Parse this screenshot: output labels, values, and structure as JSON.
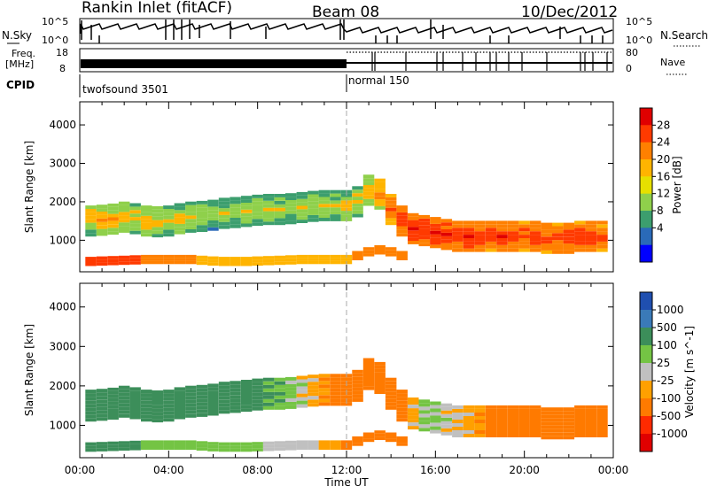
{
  "header": {
    "station": "Rankin Inlet (fitACF)",
    "beam": "Beam 08",
    "date": "10/Dec/2012"
  },
  "top_panels": {
    "nsky_label": "N.Sky",
    "nsearch_label": "N.Search",
    "nsky_ticks": [
      "10^5",
      "10^0"
    ],
    "freq_label_1": "Freq.",
    "freq_label_2": "[MHz]",
    "freq_ticks": [
      "18",
      "8"
    ],
    "nave_label": "Nave",
    "nave_ticks": [
      "80",
      "0"
    ],
    "cpid_label": "CPID",
    "cpid_1": "twofsound 3501",
    "cpid_2": "normal 150"
  },
  "chart_data": [
    {
      "type": "heatmap",
      "name": "power",
      "ylabel": "Slant Range [km]",
      "colorbar_label": "Power [dB]",
      "colorbar_ticks": [
        "28",
        "24",
        "20",
        "16",
        "12",
        "8",
        "4"
      ],
      "colorbar_colors": [
        "#e00000",
        "#ff3a00",
        "#ff8000",
        "#ffb400",
        "#e6e000",
        "#8fd04b",
        "#3c9e6e",
        "#2a6ab8",
        "#0000ff"
      ],
      "x_ticks": [
        "00:00",
        "04:00",
        "08:00",
        "12:00",
        "16:00",
        "20:00",
        "00:00"
      ],
      "y_ticks": [
        "1000",
        "2000",
        "3000",
        "4000"
      ],
      "xlim_hours": [
        0,
        24
      ],
      "ylim_km": [
        180,
        4600
      ],
      "x_hours": [
        0.5,
        1.0,
        1.5,
        2.0,
        2.5,
        3.0,
        3.5,
        4.0,
        4.5,
        5.0,
        5.5,
        6.0,
        6.5,
        7.0,
        7.5,
        8.0,
        8.5,
        9.0,
        9.5,
        10.0,
        10.5,
        11.0,
        11.5,
        12.0,
        12.5,
        13.0,
        13.5,
        14.0,
        14.5,
        15.0,
        15.5,
        16.0,
        16.5,
        17.0,
        17.5,
        18.0,
        18.5,
        19.0,
        19.5,
        20.0,
        20.5,
        21.0,
        21.5,
        22.0,
        22.5,
        23.0,
        23.5
      ],
      "band_center_km": [
        1500,
        1520,
        1550,
        1600,
        1560,
        1500,
        1480,
        1500,
        1560,
        1600,
        1620,
        1650,
        1700,
        1720,
        1750,
        1780,
        1800,
        1800,
        1820,
        1850,
        1880,
        1900,
        1900,
        1900,
        2000,
        2300,
        2200,
        1800,
        1500,
        1300,
        1250,
        1200,
        1150,
        1100,
        1100,
        1100,
        1100,
        1100,
        1100,
        1100,
        1100,
        1050,
        1050,
        1050,
        1100,
        1100,
        1100
      ],
      "band_power_db": [
        20,
        20,
        19,
        18,
        18,
        18,
        18,
        17,
        17,
        17,
        16,
        15,
        15,
        15,
        16,
        16,
        16,
        16,
        16,
        16,
        16,
        16,
        16,
        17,
        18,
        19,
        22,
        25,
        27,
        28,
        28,
        28,
        28,
        28,
        28,
        27,
        27,
        27,
        26,
        26,
        26,
        26,
        26,
        27,
        27,
        26,
        25
      ],
      "lower_band_km": [
        450,
        460,
        470,
        480,
        490,
        500,
        500,
        500,
        500,
        500,
        480,
        460,
        450,
        450,
        450,
        460,
        470,
        480,
        490,
        500,
        500,
        500,
        500,
        500,
        600,
        700,
        750,
        700,
        600,
        0,
        0,
        0,
        0,
        0,
        0,
        0,
        0,
        0,
        0,
        0,
        0,
        0,
        0,
        0,
        0,
        0,
        0
      ],
      "lower_power_db": [
        26,
        26,
        25,
        24,
        24,
        22,
        22,
        20,
        20,
        20,
        18,
        18,
        18,
        18,
        18,
        18,
        18,
        18,
        18,
        18,
        18,
        18,
        18,
        18,
        20,
        22,
        22,
        22,
        22,
        0,
        0,
        0,
        0,
        0,
        0,
        0,
        0,
        0,
        0,
        0,
        0,
        0,
        0,
        0,
        0,
        0,
        0
      ]
    },
    {
      "type": "heatmap",
      "name": "velocity",
      "ylabel": "Slant Range [km]",
      "colorbar_label": "Velocity [m s^-1]",
      "colorbar_ticks": [
        "1000",
        "500",
        "100",
        "25",
        "-25",
        "-100",
        "-500",
        "-1000"
      ],
      "colorbar_colors": [
        "#1f4fb0",
        "#3a7ab8",
        "#3c8e5a",
        "#74c444",
        "#c0c0c0",
        "#ffa000",
        "#ff7a00",
        "#ff2a00",
        "#e00000"
      ],
      "x_ticks": [
        "00:00",
        "04:00",
        "08:00",
        "12:00",
        "16:00",
        "20:00",
        "00:00"
      ],
      "y_ticks": [
        "1000",
        "2000",
        "3000",
        "4000"
      ],
      "xlabel": "Time UT",
      "xlim_hours": [
        0,
        24
      ],
      "ylim_km": [
        180,
        4600
      ],
      "x_hours": [
        0.5,
        1.0,
        1.5,
        2.0,
        2.5,
        3.0,
        3.5,
        4.0,
        4.5,
        5.0,
        5.5,
        6.0,
        6.5,
        7.0,
        7.5,
        8.0,
        8.5,
        9.0,
        9.5,
        10.0,
        10.5,
        11.0,
        11.5,
        12.0,
        12.5,
        13.0,
        13.5,
        14.0,
        14.5,
        15.0,
        15.5,
        16.0,
        16.5,
        17.0,
        17.5,
        18.0,
        18.5,
        19.0,
        19.5,
        20.0,
        20.5,
        21.0,
        21.5,
        22.0,
        22.5,
        23.0,
        23.5
      ],
      "band_center_km": [
        1500,
        1520,
        1550,
        1600,
        1560,
        1500,
        1480,
        1500,
        1560,
        1600,
        1620,
        1650,
        1700,
        1720,
        1750,
        1780,
        1800,
        1800,
        1820,
        1850,
        1880,
        1900,
        1900,
        1900,
        2000,
        2300,
        2200,
        1800,
        1500,
        1300,
        1250,
        1200,
        1150,
        1100,
        1100,
        1100,
        1100,
        1100,
        1100,
        1100,
        1100,
        1050,
        1050,
        1050,
        1100,
        1100,
        1100
      ],
      "band_velocity_ms": [
        300,
        300,
        250,
        200,
        150,
        150,
        150,
        200,
        250,
        300,
        300,
        300,
        300,
        250,
        200,
        150,
        100,
        80,
        50,
        0,
        -50,
        -100,
        -150,
        -200,
        -300,
        -400,
        -400,
        -300,
        -200,
        -50,
        25,
        25,
        0,
        -25,
        -50,
        -100,
        -150,
        -200,
        -250,
        -300,
        -300,
        -250,
        -200,
        -150,
        -200,
        -300,
        -350
      ],
      "lower_band_km": [
        450,
        460,
        470,
        480,
        490,
        500,
        500,
        500,
        500,
        500,
        480,
        460,
        450,
        450,
        450,
        460,
        470,
        480,
        490,
        500,
        500,
        500,
        500,
        500,
        600,
        700,
        750,
        700,
        600,
        0,
        0,
        0,
        0,
        0,
        0,
        0,
        0,
        0,
        0,
        0,
        0,
        0,
        0,
        0,
        0,
        0,
        0
      ],
      "lower_velocity_ms": [
        150,
        150,
        100,
        100,
        100,
        50,
        50,
        50,
        50,
        25,
        25,
        25,
        25,
        25,
        25,
        25,
        0,
        0,
        0,
        0,
        -25,
        -50,
        -100,
        -200,
        -300,
        -300,
        -300,
        -300,
        -300,
        0,
        0,
        0,
        0,
        0,
        0,
        0,
        0,
        0,
        0,
        0,
        0,
        0,
        0,
        0,
        0,
        0,
        0
      ]
    }
  ]
}
